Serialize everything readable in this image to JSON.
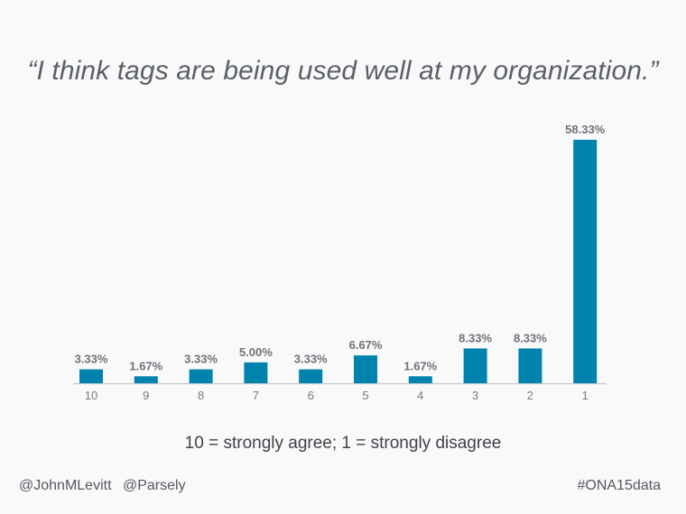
{
  "chart_data": {
    "type": "bar",
    "title": "“I think tags are being used well at my organization.”",
    "xlabel": "10 = strongly agree; 1 = strongly disagree",
    "ylabel": "",
    "categories": [
      "10",
      "9",
      "8",
      "7",
      "6",
      "5",
      "4",
      "3",
      "2",
      "1"
    ],
    "values": [
      3.33,
      1.67,
      3.33,
      5.0,
      3.33,
      6.67,
      1.67,
      8.33,
      8.33,
      58.33
    ],
    "data_labels": [
      "3.33%",
      "1.67%",
      "3.33%",
      "5.00%",
      "3.33%",
      "6.67%",
      "1.67%",
      "8.33%",
      "8.33%",
      "58.33%"
    ],
    "ylim": [
      0,
      58.33
    ],
    "grid": false,
    "legend": "none",
    "bar_color": "#0083ad",
    "axis_color": "#c8c9cc"
  },
  "footer": {
    "left_handles": [
      "@JohnMLevitt",
      "@Parsely"
    ],
    "hashtag": "#ONA15data"
  }
}
